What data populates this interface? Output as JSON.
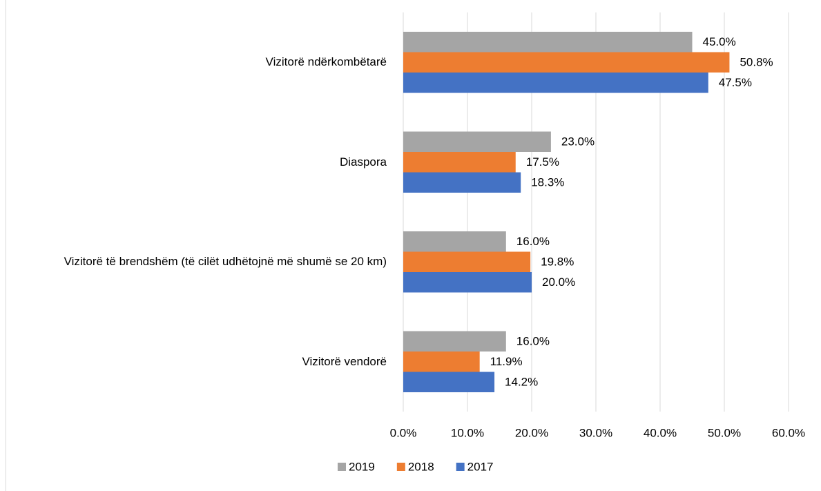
{
  "chart_data": {
    "type": "bar",
    "orientation": "horizontal",
    "categories": [
      "Vizitorë ndërkombëtarë",
      "Diaspora",
      "Vizitorë të brendshëm (të cilët udhëtojnë më shumë se 20 km)",
      "Vizitorë vendorë"
    ],
    "series": [
      {
        "name": "2019",
        "color": "#a5a5a5",
        "values": [
          45.0,
          23.0,
          16.0,
          16.0
        ],
        "value_labels": [
          "45.0%",
          "23.0%",
          "16.0%",
          "16.0%"
        ]
      },
      {
        "name": "2018",
        "color": "#ed7d31",
        "values": [
          50.8,
          17.5,
          19.8,
          11.9
        ],
        "value_labels": [
          "50.8%",
          "17.5%",
          "19.8%",
          "11.9%"
        ]
      },
      {
        "name": "2017",
        "color": "#4472c4",
        "values": [
          47.5,
          18.3,
          20.0,
          14.2
        ],
        "value_labels": [
          "47.5%",
          "18.3%",
          "20.0%",
          "14.2%"
        ]
      }
    ],
    "xlim": [
      0,
      60
    ],
    "xticks": [
      {
        "value": 0,
        "label": "0.0%"
      },
      {
        "value": 10,
        "label": "10.0%"
      },
      {
        "value": 20,
        "label": "20.0%"
      },
      {
        "value": 30,
        "label": "30.0%"
      },
      {
        "value": 40,
        "label": "40.0%"
      },
      {
        "value": 50,
        "label": "50.0%"
      },
      {
        "value": 60,
        "label": "60.0%"
      }
    ],
    "grid": true,
    "legend": "bottom"
  }
}
